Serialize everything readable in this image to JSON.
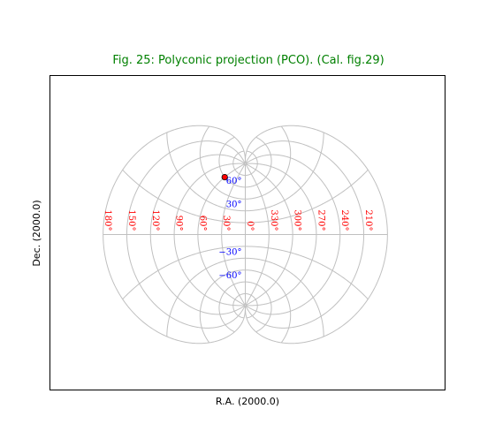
{
  "chart_data": {
    "type": "scatter",
    "title": "Fig. 25: Polyconic projection (PCO). (Cal. fig.29)",
    "xlabel": "R.A. (2000.0)",
    "ylabel": "Dec. (2000.0)",
    "projection": "polyconic",
    "grid": true,
    "meridians_deg": [
      0,
      30,
      60,
      90,
      120,
      150,
      180,
      210,
      240,
      270,
      300,
      330
    ],
    "parallels_deg": [
      -90,
      -75,
      -60,
      -45,
      -30,
      -15,
      0,
      15,
      30,
      45,
      60,
      75,
      90
    ],
    "ra_tick_labels": [
      {
        "ra": 150,
        "label": "150°"
      },
      {
        "ra": 120,
        "label": "120°"
      },
      {
        "ra": 90,
        "label": "90°"
      },
      {
        "ra": 60,
        "label": "60°"
      },
      {
        "ra": 30,
        "label": "30°"
      },
      {
        "ra": 0,
        "label": "0°"
      },
      {
        "ra": 330,
        "label": "330°"
      },
      {
        "ra": 300,
        "label": "300°"
      },
      {
        "ra": 270,
        "label": "270°"
      },
      {
        "ra": 240,
        "label": "240°"
      },
      {
        "ra": 210,
        "label": "210°"
      },
      {
        "ra": 180,
        "label": "180°"
      }
    ],
    "dec_tick_labels": [
      {
        "dec": 60,
        "label": "60°"
      },
      {
        "dec": 30,
        "label": "30°"
      },
      {
        "dec": -30,
        "label": "−30°"
      },
      {
        "dec": -60,
        "label": "−60°"
      }
    ],
    "points": [
      {
        "ra": 60,
        "dec": 60
      }
    ],
    "colors": {
      "title": "#008000",
      "grid": "#c0c0c0",
      "ra_labels": "#ff0000",
      "dec_labels": "#0000ff",
      "marker": "#ff0000",
      "frame": "#000000"
    }
  }
}
